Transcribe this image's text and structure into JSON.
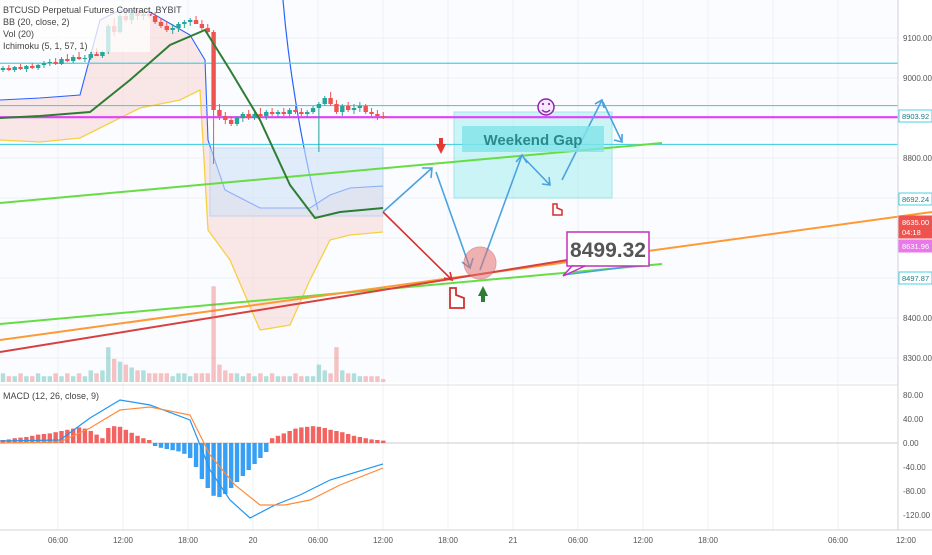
{
  "legend": {
    "title": "BTCUSD Perpetual Futures Contract, BYBIT",
    "bb": "BB (20, close, 2)",
    "vol": "Vol (20)",
    "ichimoku": "Ichimoku (5, 1, 57, 1)",
    "macd": "MACD (12, 26, close, 9)"
  },
  "price_axis": {
    "ticks": [
      "9100.00",
      "9000.00",
      "8800.00",
      "8400.00",
      "8300.00"
    ],
    "badges": [
      {
        "value": "8903.92",
        "kind": "cyan"
      },
      {
        "value": "8692.24",
        "kind": "cyan"
      },
      {
        "value": "8635.00",
        "kind": "red"
      },
      {
        "value": "04:18",
        "kind": "red"
      },
      {
        "value": "8631.96",
        "kind": "magenta"
      },
      {
        "value": "8497.87",
        "kind": "cyan"
      }
    ]
  },
  "macd_axis": {
    "ticks": [
      "80.00",
      "40.00",
      "0.00",
      "-40.00",
      "-80.00",
      "-120.00"
    ]
  },
  "time_axis": {
    "ticks": [
      "06:00",
      "12:00",
      "18:00",
      "20",
      "06:00",
      "12:00",
      "18:00",
      "21",
      "06:00",
      "12:00",
      "18:00",
      "12:00",
      "06:00"
    ]
  },
  "annotations": {
    "weekend_gap": "Weekend Gap",
    "price_label": "8499.32"
  },
  "colors": {
    "up": "#26a69a",
    "down": "#ef5350",
    "cyan_line": "#4dd0e1",
    "magenta_line": "#e040fb",
    "green_trend": "#66dd44",
    "orange_trend": "#ff9933",
    "red_trend": "#d84040",
    "blue_arrow": "#4aa3df",
    "bb_upper": "#2962ff",
    "bb_lower": "#f5d142",
    "ichimoku": "#2e7d32",
    "macd_line": "#2196f3",
    "signal_line": "#ff8a3d"
  },
  "chart_data": [
    {
      "type": "line",
      "title": "BTCUSD Perpetual Futures Contract, BYBIT",
      "ylim": [
        8240,
        9180
      ],
      "horizontal_levels": [
        8903.92,
        8692.24,
        8635.0,
        8631.96,
        8497.87
      ],
      "ohlc": [
        [
          8870,
          8890,
          8860,
          8880
        ],
        [
          8880,
          8895,
          8865,
          8870
        ],
        [
          8870,
          8890,
          8860,
          8885
        ],
        [
          8885,
          8900,
          8870,
          8875
        ],
        [
          8875,
          8895,
          8860,
          8890
        ],
        [
          8890,
          8905,
          8875,
          8880
        ],
        [
          8880,
          8900,
          8870,
          8895
        ],
        [
          8895,
          8915,
          8880,
          8905
        ],
        [
          8905,
          8925,
          8890,
          8910
        ],
        [
          8910,
          8930,
          8895,
          8900
        ],
        [
          8900,
          8935,
          8895,
          8925
        ],
        [
          8925,
          8950,
          8910,
          8915
        ],
        [
          8915,
          8945,
          8905,
          8935
        ],
        [
          8935,
          8960,
          8920,
          8925
        ],
        [
          8925,
          8945,
          8910,
          8930
        ],
        [
          8930,
          8960,
          8920,
          8950
        ],
        [
          8950,
          8980,
          8940,
          8940
        ],
        [
          8940,
          8970,
          8930,
          8960
        ],
        [
          8960,
          9100,
          8950,
          9090
        ],
        [
          9090,
          9130,
          9040,
          9060
        ],
        [
          9060,
          9150,
          9050,
          9140
        ],
        [
          9140,
          9170,
          9110,
          9120
        ],
        [
          9120,
          9180,
          9100,
          9160
        ],
        [
          9160,
          9180,
          9120,
          9140
        ],
        [
          9140,
          9170,
          9120,
          9150
        ],
        [
          9150,
          9170,
          9130,
          9140
        ],
        [
          9140,
          9160,
          9100,
          9110
        ],
        [
          9110,
          9130,
          9080,
          9090
        ],
        [
          9090,
          9110,
          9060,
          9070
        ],
        [
          9070,
          9100,
          9050,
          9080
        ],
        [
          9080,
          9110,
          9060,
          9100
        ],
        [
          9100,
          9120,
          9080,
          9110
        ],
        [
          9110,
          9130,
          9090,
          9120
        ],
        [
          9120,
          9140,
          9100,
          9100
        ],
        [
          9100,
          9120,
          9070,
          9080
        ],
        [
          9080,
          9100,
          9050,
          9060
        ],
        [
          9060,
          9070,
          8400,
          8670
        ],
        [
          8670,
          8700,
          8620,
          8640
        ],
        [
          8640,
          8660,
          8600,
          8620
        ],
        [
          8620,
          8640,
          8590,
          8600
        ],
        [
          8600,
          8640,
          8590,
          8630
        ],
        [
          8630,
          8660,
          8610,
          8650
        ],
        [
          8650,
          8670,
          8620,
          8630
        ],
        [
          8630,
          8660,
          8620,
          8650
        ],
        [
          8650,
          8680,
          8630,
          8640
        ],
        [
          8640,
          8670,
          8620,
          8660
        ],
        [
          8660,
          8680,
          8640,
          8650
        ],
        [
          8650,
          8670,
          8630,
          8660
        ],
        [
          8660,
          8680,
          8640,
          8650
        ],
        [
          8650,
          8680,
          8640,
          8670
        ],
        [
          8670,
          8690,
          8650,
          8660
        ],
        [
          8660,
          8680,
          8640,
          8650
        ],
        [
          8650,
          8670,
          8630,
          8660
        ],
        [
          8660,
          8690,
          8650,
          8680
        ],
        [
          8680,
          8710,
          8460,
          8700
        ],
        [
          8700,
          8740,
          8690,
          8730
        ],
        [
          8730,
          8760,
          8690,
          8700
        ],
        [
          8700,
          8720,
          8650,
          8660
        ],
        [
          8660,
          8700,
          8640,
          8690
        ],
        [
          8690,
          8710,
          8660,
          8670
        ],
        [
          8670,
          8700,
          8650,
          8680
        ],
        [
          8680,
          8710,
          8660,
          8690
        ],
        [
          8690,
          8700,
          8650,
          8660
        ],
        [
          8660,
          8680,
          8640,
          8650
        ],
        [
          8650,
          8670,
          8620,
          8640
        ],
        [
          8640,
          8660,
          8625,
          8635
        ]
      ],
      "volume": [
        3,
        2,
        2,
        3,
        2,
        2,
        3,
        2,
        2,
        3,
        2,
        3,
        2,
        3,
        2,
        4,
        3,
        4,
        12,
        8,
        7,
        6,
        5,
        4,
        4,
        3,
        3,
        3,
        3,
        2,
        3,
        3,
        2,
        3,
        3,
        3,
        33,
        6,
        4,
        3,
        3,
        2,
        3,
        2,
        3,
        2,
        3,
        2,
        2,
        2,
        3,
        2,
        2,
        2,
        6,
        4,
        3,
        12,
        4,
        3,
        3,
        2,
        2,
        2,
        2,
        1
      ]
    },
    {
      "type": "bar",
      "title": "MACD (12, 26, close, 9)",
      "ylim": [
        -130,
        90
      ],
      "histogram": [
        5,
        6,
        8,
        9,
        10,
        12,
        14,
        15,
        16,
        18,
        20,
        22,
        24,
        26,
        24,
        20,
        14,
        8,
        25,
        28,
        27,
        22,
        17,
        12,
        8,
        5,
        -5,
        -8,
        -10,
        -12,
        -14,
        -18,
        -25,
        -40,
        -60,
        -75,
        -88,
        -90,
        -85,
        -75,
        -65,
        -55,
        -45,
        -35,
        -25,
        -15,
        8,
        12,
        16,
        20,
        24,
        26,
        27,
        28,
        27,
        25,
        22,
        20,
        18,
        15,
        12,
        10,
        8,
        6,
        5,
        4
      ]
    }
  ]
}
